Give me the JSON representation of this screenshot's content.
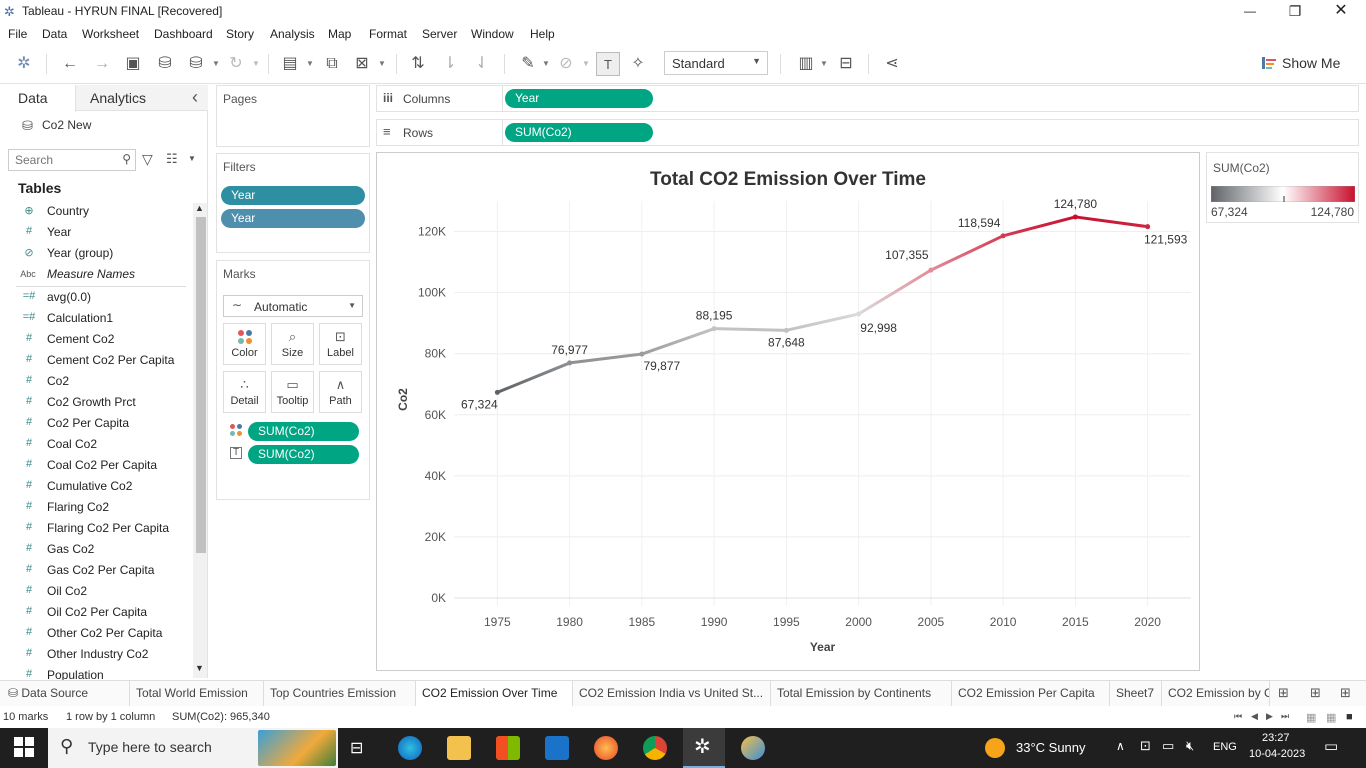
{
  "window": {
    "title": "Tableau - HYRUN FINAL [Recovered]",
    "minimize": "—",
    "restore": "❐",
    "close": "✕"
  },
  "menu": [
    "File",
    "Data",
    "Worksheet",
    "Dashboard",
    "Story",
    "Analysis",
    "Map",
    "Format",
    "Server",
    "Window",
    "Help"
  ],
  "toolbar": {
    "fit_value": "Standard",
    "show_me": "Show Me"
  },
  "data_pane": {
    "tabs": [
      "Data",
      "Analytics"
    ],
    "collapse_icon": "‹",
    "datasource": "Co2 New",
    "search_placeholder": "Search",
    "tables_header": "Tables",
    "dimensions": [
      {
        "icon": "globe",
        "glyph": "⊕",
        "name": "Country"
      },
      {
        "icon": "hash",
        "glyph": "#",
        "name": "Year"
      },
      {
        "icon": "paperclip",
        "glyph": "⊘",
        "name": "Year (group)"
      },
      {
        "icon": "abc",
        "glyph": "Abc",
        "name": "Measure Names"
      }
    ],
    "measures": [
      {
        "glyph": "=#",
        "name": "avg(0.0)"
      },
      {
        "glyph": "=#",
        "name": "Calculation1"
      },
      {
        "glyph": "#",
        "name": "Cement Co2"
      },
      {
        "glyph": "#",
        "name": "Cement Co2 Per Capita"
      },
      {
        "glyph": "#",
        "name": "Co2"
      },
      {
        "glyph": "#",
        "name": "Co2 Growth Prct"
      },
      {
        "glyph": "#",
        "name": "Co2 Per Capita"
      },
      {
        "glyph": "#",
        "name": "Coal Co2"
      },
      {
        "glyph": "#",
        "name": "Coal Co2 Per Capita"
      },
      {
        "glyph": "#",
        "name": "Cumulative Co2"
      },
      {
        "glyph": "#",
        "name": "Flaring Co2"
      },
      {
        "glyph": "#",
        "name": "Flaring Co2 Per Capita"
      },
      {
        "glyph": "#",
        "name": "Gas Co2"
      },
      {
        "glyph": "#",
        "name": "Gas Co2 Per Capita"
      },
      {
        "glyph": "#",
        "name": "Oil Co2"
      },
      {
        "glyph": "#",
        "name": "Oil Co2 Per Capita"
      },
      {
        "glyph": "#",
        "name": "Other Co2 Per Capita"
      },
      {
        "glyph": "#",
        "name": "Other Industry Co2"
      },
      {
        "glyph": "#",
        "name": "Population"
      }
    ]
  },
  "shelves": {
    "pages_label": "Pages",
    "filters_label": "Filters",
    "filters": [
      "Year",
      "Year"
    ],
    "columns_label": "Columns",
    "columns_pill": "Year",
    "rows_label": "Rows",
    "rows_pill": "SUM(Co2)"
  },
  "marks": {
    "label": "Marks",
    "type": "Automatic",
    "buttons": [
      "Color",
      "Size",
      "Label",
      "Detail",
      "Tooltip",
      "Path"
    ],
    "pills": [
      "SUM(Co2)",
      "SUM(Co2)"
    ]
  },
  "legend": {
    "title": "SUM(Co2)",
    "min_label": "67,324",
    "max_label": "124,780",
    "colors": [
      "#5f6368",
      "#ffffff",
      "#c8102e"
    ]
  },
  "chart_data": {
    "type": "line",
    "title": "Total CO2 Emission Over Time",
    "xlabel": "Year",
    "ylabel": "Co2",
    "x": [
      1975,
      1980,
      1985,
      1990,
      1995,
      2000,
      2005,
      2010,
      2015,
      2020
    ],
    "values": [
      67324,
      76977,
      79877,
      88195,
      87648,
      92998,
      107355,
      118594,
      124780,
      121593
    ],
    "data_labels": [
      "67,324",
      "76,977",
      "79,877",
      "88,195",
      "87,648",
      "92,998",
      "107,355",
      "118,594",
      "124,780",
      "121,593"
    ],
    "y_ticks": [
      "0K",
      "20K",
      "40K",
      "60K",
      "80K",
      "100K",
      "120K"
    ],
    "ylim": [
      0,
      130000
    ],
    "xlim": [
      1972,
      2023
    ],
    "grid": true
  },
  "sheet_tabs": {
    "data_source": "Data Source",
    "tabs": [
      "Total World Emission",
      "Top Countries Emission",
      "CO2 Emission Over Time",
      "CO2 Emission India vs United St...",
      "Total Emission by Continents",
      "CO2 Emission Per Capita",
      "Sheet7",
      "CO2 Emission by C"
    ],
    "active": "CO2 Emission Over Time"
  },
  "status": {
    "marks": "10 marks",
    "shape": "1 row by 1 column",
    "sum": "SUM(Co2): 965,340"
  },
  "taskbar": {
    "search_placeholder": "Type here to search",
    "weather": "33°C  Sunny",
    "language": "ENG",
    "time": "23:27",
    "date": "10-04-2023"
  }
}
